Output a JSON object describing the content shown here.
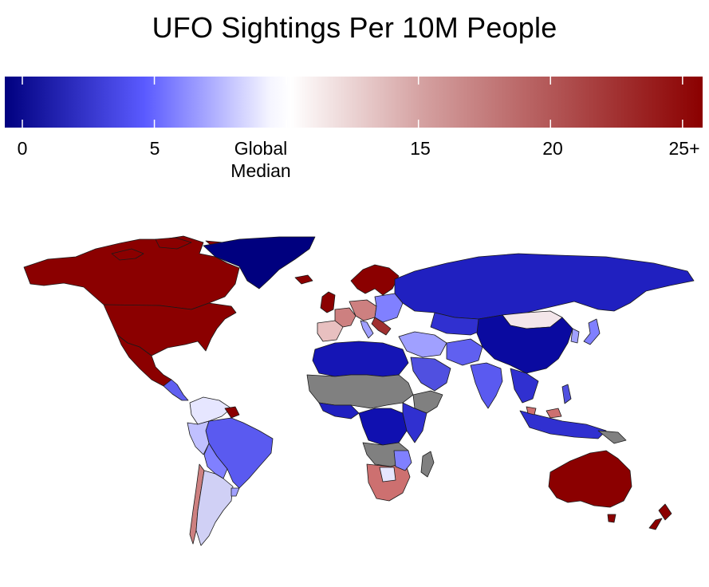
{
  "title": "UFO Sightings Per 10M People",
  "colorbar": {
    "stops": [
      "#00007f",
      "#5a5aff",
      "#f5f5ff",
      "#ffffff",
      "#d4a0a0",
      "#8b0000"
    ],
    "ticks": [
      {
        "value": 0,
        "label": "0"
      },
      {
        "value": 5,
        "label": "5"
      },
      {
        "value": 10,
        "label": "Global",
        "label2": "Median"
      },
      {
        "value": 15,
        "label": "15"
      },
      {
        "value": 20,
        "label": "20"
      },
      {
        "value": 25,
        "label": "25+"
      }
    ],
    "range": [
      0,
      25.7
    ]
  },
  "legend_colors": {
    "very_high": "#8b0000",
    "high": "#cd7f7f",
    "near_median": "#f0e6ea",
    "low": "#a8a8f0",
    "lower": "#5c5cf0",
    "very_low": "#1010b0",
    "lowest": "#000080",
    "no_data": "#808080"
  }
}
